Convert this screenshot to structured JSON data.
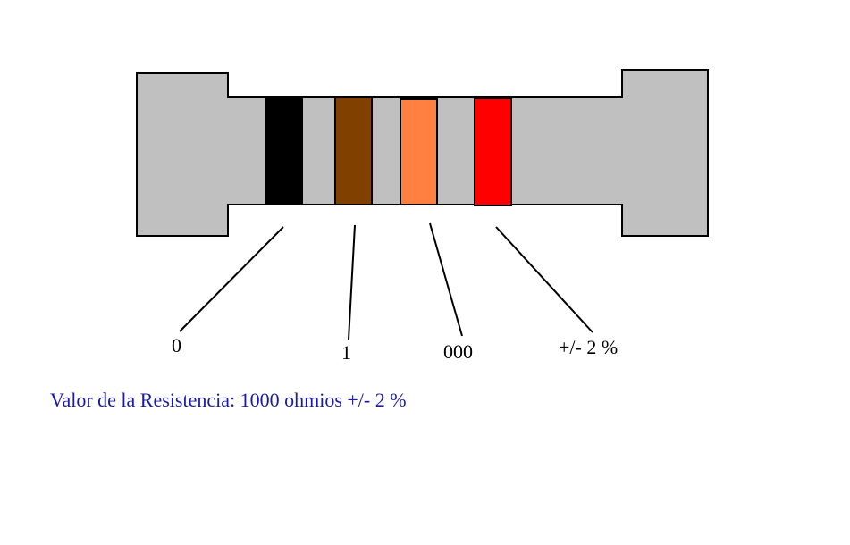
{
  "resistor": {
    "body_color": "#c0c0c0",
    "outline_color": "#000000",
    "bands": [
      {
        "name": "black",
        "color": "#000000",
        "label": "0"
      },
      {
        "name": "brown",
        "color": "#804000",
        "label": "1"
      },
      {
        "name": "orange",
        "color": "#ff8040",
        "label": "000"
      },
      {
        "name": "red",
        "color": "#ff0000",
        "label": "+/- 2 %"
      }
    ]
  },
  "result": {
    "text": "Valor de la Resistencia: 1000 ohmios +/- 2 %",
    "color": "#1a1aa6"
  }
}
